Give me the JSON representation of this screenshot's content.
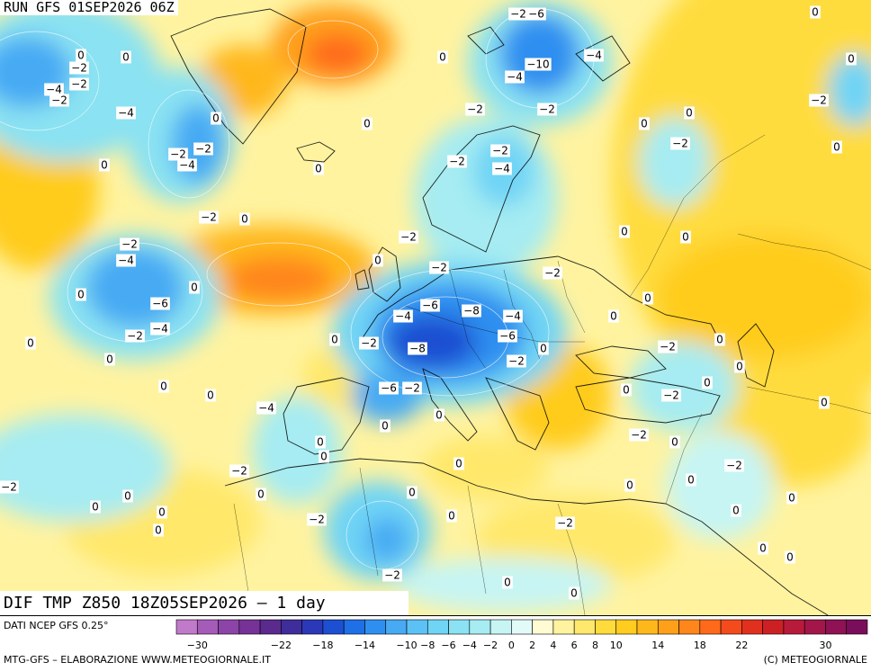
{
  "run_label": "RUN GFS 01SEP2026 06Z",
  "map_title": "DIF TMP Z850 18Z05SEP2026 – 1 day",
  "source_label": "DATI NCEP GFS 0.25°",
  "footer_left": "MTG-GFS – ELABORAZIONE WWW.METEOGIORNALE.IT",
  "footer_right": "(C) METEOGIORNALE",
  "legend": {
    "colors": [
      "#c07ac9",
      "#a55cb8",
      "#8c44a8",
      "#763296",
      "#5a2a8c",
      "#3f2d9c",
      "#2b38b8",
      "#1d4fd2",
      "#1f6fe6",
      "#2f8ff0",
      "#47aaf3",
      "#5cc2f5",
      "#70d4f5",
      "#8ae2f2",
      "#a6ecf2",
      "#c6f5f4",
      "#e2fbf8",
      "#fffbd2",
      "#fff3a0",
      "#ffe86b",
      "#ffdc3c",
      "#ffcc1f",
      "#ffb81c",
      "#ffa01a",
      "#ff861a",
      "#ff6a1a",
      "#f44b1d",
      "#e2301f",
      "#cc2025",
      "#b81a3a",
      "#a3164a",
      "#8e1254",
      "#7a0e5a"
    ],
    "labels": [
      {
        "text": "−30",
        "v": -30
      },
      {
        "text": "−22",
        "v": -22
      },
      {
        "text": "−18",
        "v": -18
      },
      {
        "text": "−14",
        "v": -14
      },
      {
        "text": "−10",
        "v": -10
      },
      {
        "text": "−8",
        "v": -8
      },
      {
        "text": "−6",
        "v": -6
      },
      {
        "text": "−4",
        "v": -4
      },
      {
        "text": "−2",
        "v": -2
      },
      {
        "text": "0",
        "v": 0
      },
      {
        "text": "2",
        "v": 2
      },
      {
        "text": "4",
        "v": 4
      },
      {
        "text": "6",
        "v": 6
      },
      {
        "text": "8",
        "v": 8
      },
      {
        "text": "10",
        "v": 10
      },
      {
        "text": "14",
        "v": 14
      },
      {
        "text": "18",
        "v": 18
      },
      {
        "text": "22",
        "v": 22
      },
      {
        "text": "30",
        "v": 30
      }
    ]
  },
  "contour_labels": [
    {
      "text": "−2"
    },
    {
      "text": "−6"
    },
    {
      "text": "−4"
    },
    {
      "text": "−10"
    },
    {
      "text": "−4"
    },
    {
      "text": "−2"
    },
    {
      "text": "−2"
    },
    {
      "text": "−2"
    },
    {
      "text": "−4"
    },
    {
      "text": "−2"
    },
    {
      "text": "−2"
    },
    {
      "text": "−4"
    },
    {
      "text": "−2"
    },
    {
      "text": "−4"
    },
    {
      "text": "−2"
    },
    {
      "text": "−2"
    },
    {
      "text": "−2"
    },
    {
      "text": "−2"
    },
    {
      "text": "−4"
    },
    {
      "text": "−2"
    },
    {
      "text": "−6"
    },
    {
      "text": "−4"
    },
    {
      "text": "−2"
    },
    {
      "text": "−2"
    },
    {
      "text": "−4"
    },
    {
      "text": "−6"
    },
    {
      "text": "−8"
    },
    {
      "text": "−4"
    },
    {
      "text": "−2"
    },
    {
      "text": "−8"
    },
    {
      "text": "−6"
    },
    {
      "text": "−4"
    },
    {
      "text": "−2"
    },
    {
      "text": "−6"
    },
    {
      "text": "−2"
    },
    {
      "text": "−2"
    },
    {
      "text": "−2"
    },
    {
      "text": "−2"
    },
    {
      "text": "−2"
    },
    {
      "text": "−4"
    },
    {
      "text": "−2"
    },
    {
      "text": "−2"
    },
    {
      "text": "−2"
    },
    {
      "text": "−2"
    },
    {
      "text": "−2"
    },
    {
      "text": "−2"
    },
    {
      "text": "−2"
    },
    {
      "text": "−2"
    },
    {
      "text": "−2"
    },
    {
      "text": "0"
    },
    {
      "text": "0"
    },
    {
      "text": "0"
    },
    {
      "text": "0"
    },
    {
      "text": "0"
    },
    {
      "text": "0"
    },
    {
      "text": "0"
    },
    {
      "text": "0"
    },
    {
      "text": "0"
    },
    {
      "text": "0"
    },
    {
      "text": "0"
    },
    {
      "text": "0"
    },
    {
      "text": "0"
    },
    {
      "text": "0"
    },
    {
      "text": "0"
    },
    {
      "text": "0"
    },
    {
      "text": "0"
    },
    {
      "text": "0"
    },
    {
      "text": "0"
    },
    {
      "text": "0"
    },
    {
      "text": "0"
    },
    {
      "text": "0"
    },
    {
      "text": "0"
    },
    {
      "text": "0"
    },
    {
      "text": "0"
    },
    {
      "text": "0"
    },
    {
      "text": "0"
    },
    {
      "text": "0"
    },
    {
      "text": "0"
    },
    {
      "text": "0"
    },
    {
      "text": "0"
    },
    {
      "text": "0"
    },
    {
      "text": "0"
    },
    {
      "text": "0"
    },
    {
      "text": "0"
    },
    {
      "text": "0"
    },
    {
      "text": "0"
    },
    {
      "text": "0"
    },
    {
      "text": "0"
    },
    {
      "text": "0"
    },
    {
      "text": "0"
    },
    {
      "text": "0"
    },
    {
      "text": "0"
    },
    {
      "text": "0"
    },
    {
      "text": "0"
    },
    {
      "text": "0"
    },
    {
      "text": "0"
    },
    {
      "text": "0"
    },
    {
      "text": "0"
    },
    {
      "text": "0"
    },
    {
      "text": "0"
    },
    {
      "text": "0"
    }
  ]
}
